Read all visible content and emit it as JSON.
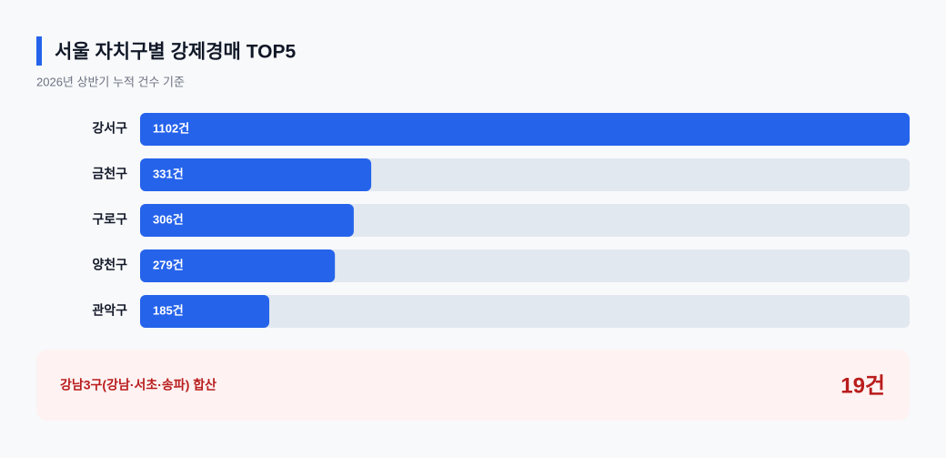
{
  "chart_data": {
    "type": "bar",
    "orientation": "horizontal",
    "title": "서울 자치구별 강제경매 TOP5",
    "subtitle": "2026년 상반기 누적 건수 기준",
    "categories": [
      "강서구",
      "금천구",
      "구로구",
      "양천구",
      "관악구"
    ],
    "values": [
      1102,
      331,
      306,
      279,
      185
    ],
    "value_labels": [
      "1102건",
      "331건",
      "306건",
      "279건",
      "185건"
    ],
    "color": "#2563eb",
    "xlim": [
      0,
      1102
    ],
    "summary": {
      "label": "강남3구(강남·서초·송파) 합산",
      "value": 19,
      "value_label": "19건"
    }
  }
}
